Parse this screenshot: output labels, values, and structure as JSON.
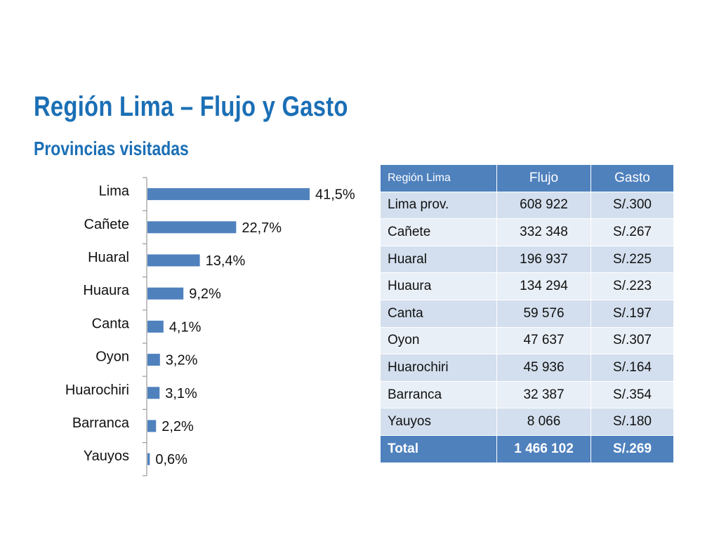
{
  "slide": {
    "title": "Región Lima – Flujo y Gasto",
    "subtitle": "Provincias visitadas"
  },
  "colors": {
    "accent": "#1b6fb5",
    "bar": "#4f81bd",
    "table_header": "#4f81bd",
    "row_odd": "#d3dfee",
    "row_even": "#e9eff7"
  },
  "chart_data": {
    "type": "bar",
    "orientation": "horizontal",
    "categories": [
      "Lima",
      "Cañete",
      "Huaral",
      "Huaura",
      "Canta",
      "Oyon",
      "Huarochiri",
      "Barranca",
      "Yauyos"
    ],
    "values": [
      41.5,
      22.7,
      13.4,
      9.2,
      4.1,
      3.2,
      3.1,
      2.2,
      0.6
    ],
    "data_labels": [
      "41,5%",
      "22,7%",
      "13,4%",
      "9,2%",
      "4,1%",
      "3,2%",
      "3,1%",
      "2,2%",
      "0,6%"
    ],
    "unit": "%",
    "grid": false,
    "legend": "none"
  },
  "table": {
    "headers": [
      "Región Lima",
      "Flujo",
      "Gasto"
    ],
    "rows": [
      [
        "Lima prov.",
        "608 922",
        "S/.300"
      ],
      [
        "Cañete",
        "332 348",
        "S/.267"
      ],
      [
        "Huaral",
        "196 937",
        "S/.225"
      ],
      [
        "Huaura",
        "134 294",
        "S/.223"
      ],
      [
        "Canta",
        "59 576",
        "S/.197"
      ],
      [
        "Oyon",
        "47 637",
        "S/.307"
      ],
      [
        "Huarochiri",
        "45 936",
        "S/.164"
      ],
      [
        "Barranca",
        "32 387",
        "S/.354"
      ],
      [
        "Yauyos",
        "8 066",
        "S/.180"
      ]
    ],
    "total": [
      "Total",
      "1 466 102",
      "S/.269"
    ]
  }
}
